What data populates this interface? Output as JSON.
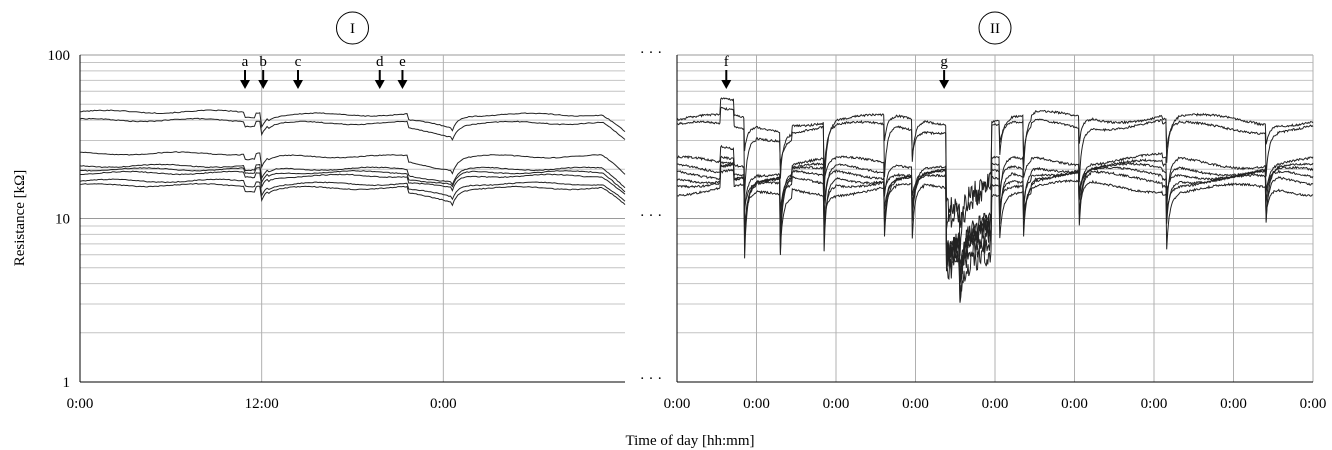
{
  "chart_data": [
    {
      "panel_label": "I",
      "type": "line",
      "yscale": "log",
      "ylim": [
        1,
        100
      ],
      "y_ticks": [
        "1",
        "10",
        "100"
      ],
      "xlim": [
        0,
        36
      ],
      "x_ticks": [
        {
          "t": 0,
          "label": "0:00"
        },
        {
          "t": 12,
          "label": "12:00"
        },
        {
          "t": 24,
          "label": "0:00"
        }
      ],
      "ylabel": "Resistance [kΩ]",
      "grid": true,
      "markers": [
        {
          "label": "a",
          "t": 10.9
        },
        {
          "label": "b",
          "t": 12.1
        },
        {
          "label": "c",
          "t": 14.4
        },
        {
          "label": "d",
          "t": 19.8
        },
        {
          "label": "e",
          "t": 21.3
        }
      ],
      "series_levels": [
        45,
        40,
        25,
        21,
        20,
        19,
        17,
        16
      ]
    },
    {
      "panel_label": "II",
      "type": "line",
      "yscale": "log",
      "ylim": [
        1,
        100
      ],
      "xlim": [
        0,
        8
      ],
      "x_ticks": [
        "0:00",
        "0:00",
        "0:00",
        "0:00",
        "0:00",
        "0:00",
        "0:00",
        "0:00",
        "0:00"
      ],
      "grid": true,
      "markers": [
        {
          "label": "f",
          "t": 0.62
        },
        {
          "label": "g",
          "t": 3.36
        }
      ],
      "series_levels": [
        40,
        36,
        22,
        20,
        19,
        18,
        17,
        15
      ]
    }
  ],
  "xlabel": "Time of day [hh:mm]",
  "ellipsis": "· · ·"
}
